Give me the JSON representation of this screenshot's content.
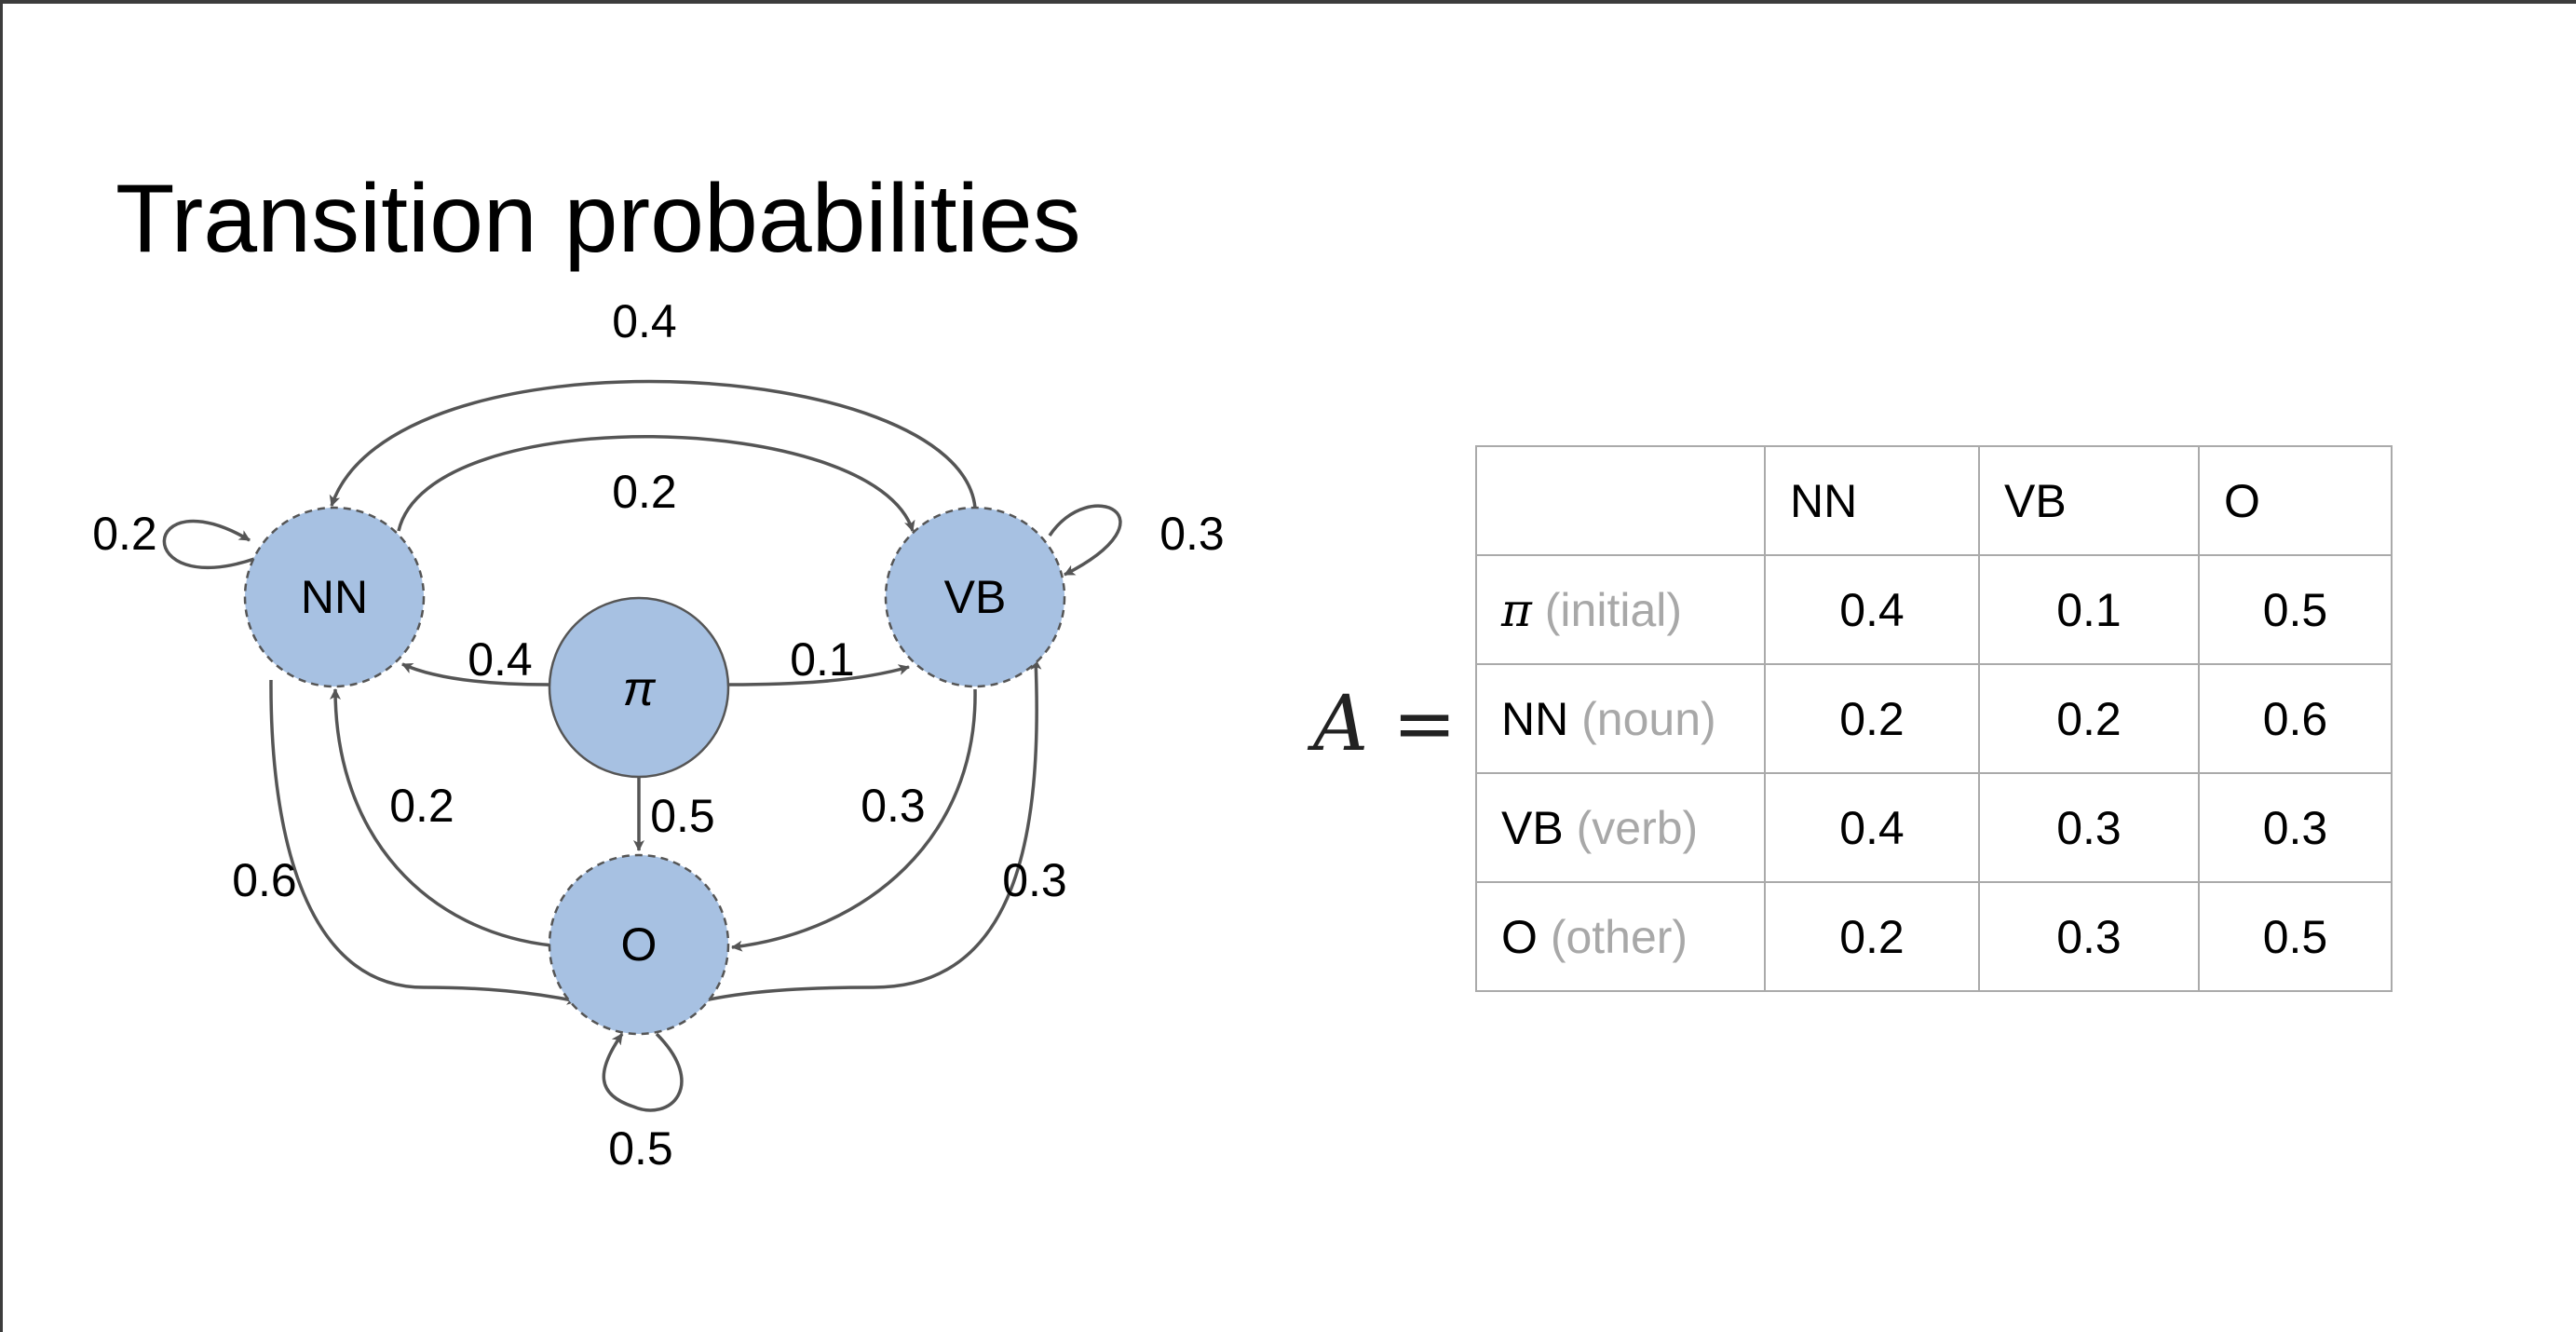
{
  "title": "Transition probabilities",
  "colors": {
    "node_fill": "#a7c1e2",
    "edge": "#555555",
    "grid": "#aaaaaa",
    "muted_text": "#a8a8a8"
  },
  "diagram": {
    "nodes": [
      {
        "id": "NN",
        "label": "NN",
        "border": "dashed"
      },
      {
        "id": "VB",
        "label": "VB",
        "border": "dashed"
      },
      {
        "id": "pi",
        "label": "π",
        "border": "solid"
      },
      {
        "id": "O",
        "label": "O",
        "border": "dashed"
      }
    ],
    "edges": [
      {
        "from": "VB",
        "to": "NN",
        "label": "0.4"
      },
      {
        "from": "NN",
        "to": "VB",
        "label": "0.2"
      },
      {
        "from": "NN",
        "to": "NN",
        "label": "0.2"
      },
      {
        "from": "VB",
        "to": "VB",
        "label": "0.3"
      },
      {
        "from": "pi",
        "to": "NN",
        "label": "0.4"
      },
      {
        "from": "pi",
        "to": "VB",
        "label": "0.1"
      },
      {
        "from": "pi",
        "to": "O",
        "label": "0.5"
      },
      {
        "from": "O",
        "to": "NN",
        "label": "0.2"
      },
      {
        "from": "VB",
        "to": "O",
        "label": "0.3"
      },
      {
        "from": "NN",
        "to": "O",
        "label": "0.6"
      },
      {
        "from": "O",
        "to": "VB",
        "label": "0.3"
      },
      {
        "from": "O",
        "to": "O",
        "label": "0.5"
      }
    ]
  },
  "matrix": {
    "symbol": "A",
    "equals": "=",
    "columns": [
      "NN",
      "VB",
      "O"
    ],
    "rows": [
      {
        "symbol": "π",
        "desc": "(initial)",
        "values": [
          "0.4",
          "0.1",
          "0.5"
        ]
      },
      {
        "symbol": "NN",
        "desc": "(noun)",
        "values": [
          "0.2",
          "0.2",
          "0.6"
        ]
      },
      {
        "symbol": "VB",
        "desc": "(verb)",
        "values": [
          "0.4",
          "0.3",
          "0.3"
        ]
      },
      {
        "symbol": "O",
        "desc": "(other)",
        "values": [
          "0.2",
          "0.3",
          "0.5"
        ]
      }
    ]
  }
}
